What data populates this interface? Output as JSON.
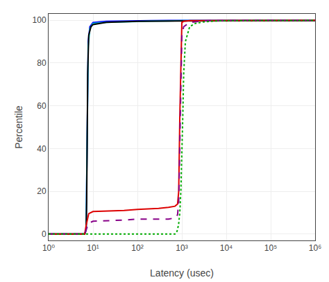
{
  "chart_data": {
    "type": "line",
    "xlabel": "Latency (usec)",
    "ylabel": "Percentile",
    "log": "x",
    "grid": true,
    "xlim": [
      1,
      1000000
    ],
    "ylim": [
      -3,
      103
    ],
    "xticks": [
      {
        "value": 1,
        "label": "10⁰"
      },
      {
        "value": 10,
        "label": "10¹"
      },
      {
        "value": 100,
        "label": "10²"
      },
      {
        "value": 1000,
        "label": "10³"
      },
      {
        "value": 10000,
        "label": "10⁴"
      },
      {
        "value": 100000,
        "label": "10⁵"
      },
      {
        "value": 1000000,
        "label": "10⁶"
      }
    ],
    "yticks": [
      0,
      20,
      40,
      60,
      80,
      100
    ],
    "series": [
      {
        "color": "#0000ff",
        "line_style": "solid",
        "x": [
          1,
          6.5,
          7,
          7.3,
          7.8,
          8.5,
          10,
          20,
          50,
          100,
          200,
          500,
          1000,
          1000000
        ],
        "values": [
          0,
          0,
          2,
          40,
          90,
          97,
          99,
          99.5,
          99.7,
          99.8,
          99.85,
          99.9,
          99.95,
          99.97
        ]
      },
      {
        "color": "#00cccc",
        "line_style": "solid",
        "x": [
          1,
          6.5,
          7,
          7.3,
          7.8,
          8.5,
          10,
          20,
          50,
          100,
          200,
          500,
          1000,
          1000000
        ],
        "values": [
          0,
          0,
          2,
          38,
          88,
          96,
          98.5,
          99.0,
          99.3,
          99.5,
          99.6,
          99.7,
          99.8,
          99.85
        ]
      },
      {
        "color": "#000000",
        "line_style": "solid",
        "x": [
          1,
          6.5,
          7,
          7.2,
          7.6,
          8.0,
          9,
          10,
          20,
          100,
          1000,
          1000000
        ],
        "values": [
          0,
          0,
          2,
          15,
          75,
          93,
          97,
          98,
          99,
          99.5,
          99.7,
          99.8
        ]
      },
      {
        "color": "#dd0000",
        "line_style": "solid",
        "x": [
          1,
          6.5,
          7,
          8,
          10,
          50,
          100,
          300,
          500,
          700,
          800,
          850,
          900,
          950,
          1000,
          1100,
          1500,
          10000,
          1000000
        ],
        "values": [
          0,
          0,
          4,
          9.5,
          10.5,
          11,
          11.5,
          12,
          12.5,
          13,
          14,
          20,
          55,
          85,
          99,
          99.5,
          99.8,
          99.95,
          99.97
        ]
      },
      {
        "color": "#880088",
        "line_style": "dashed",
        "x": [
          1,
          6.5,
          7,
          8,
          10,
          50,
          100,
          300,
          500,
          700,
          800,
          850,
          900,
          950,
          1000,
          1100,
          1500,
          2000,
          3000,
          5000,
          10000,
          50000,
          1000000
        ],
        "values": [
          0,
          0,
          2,
          5,
          6,
          6.5,
          7,
          7,
          7,
          7.5,
          9,
          15,
          40,
          70,
          93,
          97,
          99,
          99.3,
          99.7,
          99.85,
          99.92,
          99.97,
          99.98
        ]
      },
      {
        "color": "#00aa00",
        "line_style": "dotted",
        "x": [
          1,
          6.5,
          700,
          750,
          800,
          850,
          900,
          950,
          1000,
          1050,
          1100,
          1200,
          1500,
          2000,
          3000,
          5000,
          10000,
          50000,
          100000,
          1000000
        ],
        "values": [
          0,
          0,
          0,
          0.5,
          2,
          5,
          10,
          20,
          35,
          55,
          75,
          90,
          97,
          98.5,
          99.2,
          99.6,
          99.85,
          99.95,
          99.97,
          99.98
        ]
      }
    ]
  }
}
